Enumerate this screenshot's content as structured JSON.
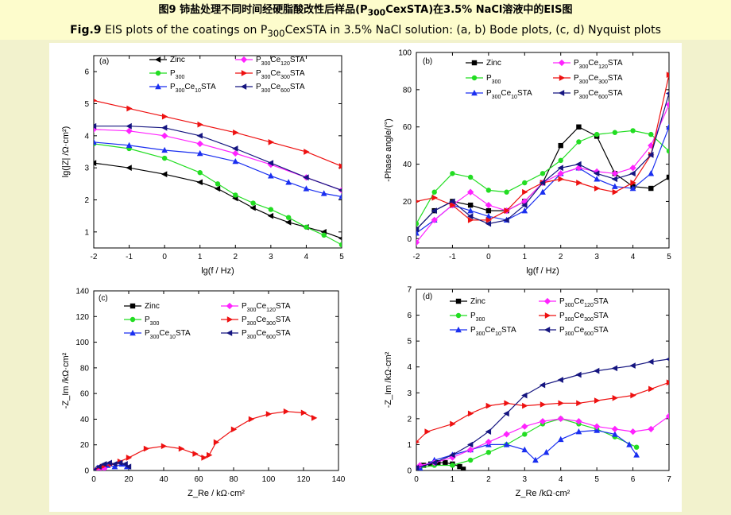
{
  "header": {
    "title_cn_pre": "图9",
    "title_cn": "铈盐处理不同时间经硬脂酸改性后样品(P",
    "title_cn_sub": "300",
    "title_cn_post": "CexSTA)在3.5% NaCl溶液中的EIS图",
    "title_en_bold": "Fig.9",
    "title_en_pre": " EIS plots of the coatings on P",
    "title_en_sub": "300",
    "title_en_post": "CexSTA in 3.5% NaCl solution: (a, b) Bode plots, (c, d) Nyquist plots"
  },
  "colors": {
    "Zinc": "#000000",
    "P300": "#22dd22",
    "P300Ce10STA": "#1a2ff0",
    "P300Ce120STA": "#ff22ff",
    "P300Ce300STA": "#ee1111",
    "P300Ce600STA": "#151580"
  },
  "chart_data": [
    {
      "panel": "(a)",
      "type": "line",
      "xlabel": "lg(f / Hz)",
      "ylabel": "lg(|Z| /Ω·cm²)",
      "xlim": [
        -2,
        5
      ],
      "ylim": [
        0.5,
        6.5
      ],
      "xticks": [
        "-2",
        "-1",
        "0",
        "1",
        "2",
        "3",
        "4",
        "5"
      ],
      "yticks": [
        "1",
        "2",
        "3",
        "4",
        "5",
        "6"
      ],
      "legend": [
        "Zinc",
        "P300",
        "P300Ce10STA",
        "P300Ce120STA",
        "P300Ce300STA",
        "P300Ce600STA"
      ],
      "series": [
        {
          "name": "Zinc",
          "marker": "triangle-left",
          "x": [
            -2,
            -1,
            0,
            1,
            1.5,
            2,
            2.5,
            3,
            3.5,
            4,
            4.5,
            5
          ],
          "y": [
            3.15,
            3.0,
            2.8,
            2.55,
            2.35,
            2.05,
            1.75,
            1.5,
            1.3,
            1.15,
            1.0,
            0.8
          ]
        },
        {
          "name": "P300",
          "marker": "circle",
          "x": [
            -2,
            -1,
            0,
            1,
            1.5,
            2,
            2.5,
            3,
            3.5,
            4,
            4.5,
            5
          ],
          "y": [
            3.75,
            3.6,
            3.3,
            2.85,
            2.5,
            2.15,
            1.9,
            1.7,
            1.45,
            1.15,
            0.9,
            0.6
          ]
        },
        {
          "name": "P300Ce10STA",
          "marker": "triangle-up",
          "x": [
            -2,
            -1,
            0,
            1,
            2,
            3,
            3.5,
            4,
            4.5,
            5
          ],
          "y": [
            3.8,
            3.7,
            3.55,
            3.45,
            3.2,
            2.75,
            2.55,
            2.35,
            2.2,
            2.1
          ]
        },
        {
          "name": "P300Ce120STA",
          "marker": "diamond",
          "x": [
            -2,
            -1,
            0,
            1,
            2,
            3,
            4,
            5
          ],
          "y": [
            4.2,
            4.15,
            4.0,
            3.75,
            3.45,
            3.1,
            2.7,
            2.3
          ]
        },
        {
          "name": "P300Ce300STA",
          "marker": "triangle-right",
          "x": [
            -2,
            -1,
            0,
            1,
            2,
            3,
            4,
            5
          ],
          "y": [
            5.1,
            4.85,
            4.6,
            4.35,
            4.1,
            3.8,
            3.5,
            3.05
          ]
        },
        {
          "name": "P300Ce600STA",
          "marker": "triangle-left",
          "x": [
            -2,
            -1,
            0,
            1,
            2,
            3,
            4,
            5
          ],
          "y": [
            4.3,
            4.3,
            4.25,
            4.0,
            3.6,
            3.15,
            2.7,
            2.3
          ]
        }
      ]
    },
    {
      "panel": "(b)",
      "type": "line",
      "xlabel": "lg(f / Hz)",
      "ylabel": "-Phase angle/(°)",
      "xlim": [
        -2,
        5
      ],
      "ylim": [
        -5,
        100
      ],
      "xticks": [
        "-2",
        "-1",
        "0",
        "1",
        "2",
        "3",
        "4",
        "5"
      ],
      "yticks": [
        "0",
        "20",
        "40",
        "60",
        "80",
        "100"
      ],
      "legend": [
        "Zinc",
        "P300",
        "P300Ce10STA",
        "P300Ce120STA",
        "P300Ce300STA",
        "P300Ce600STA"
      ],
      "series": [
        {
          "name": "Zinc",
          "marker": "square",
          "x": [
            -2,
            -1.5,
            -1,
            -0.5,
            0,
            0.5,
            1,
            1.5,
            2,
            2.5,
            3,
            3.5,
            4,
            4.5,
            5
          ],
          "y": [
            5,
            15,
            20,
            18,
            15,
            15,
            20,
            30,
            50,
            60,
            55,
            35,
            28,
            27,
            33
          ]
        },
        {
          "name": "P300",
          "marker": "circle",
          "x": [
            -2,
            -1.5,
            -1,
            -0.5,
            0,
            0.5,
            1,
            1.5,
            2,
            2.5,
            3,
            3.5,
            4,
            4.5,
            5
          ],
          "y": [
            8,
            25,
            35,
            33,
            26,
            25,
            30,
            35,
            42,
            52,
            56,
            57,
            58,
            56,
            47
          ]
        },
        {
          "name": "P300Ce10STA",
          "marker": "triangle-up",
          "x": [
            -2,
            -1.5,
            -1,
            -0.5,
            0,
            0.5,
            1,
            1.5,
            2,
            2.5,
            3,
            3.5,
            4,
            4.5,
            5
          ],
          "y": [
            3,
            10,
            18,
            15,
            12,
            10,
            15,
            25,
            35,
            38,
            32,
            28,
            27,
            35,
            60
          ]
        },
        {
          "name": "P300Ce120STA",
          "marker": "diamond",
          "x": [
            -2,
            -1.5,
            -1,
            -0.5,
            0,
            0.5,
            1,
            1.5,
            2,
            2.5,
            3,
            3.5,
            4,
            4.5,
            5
          ],
          "y": [
            -2,
            10,
            18,
            25,
            18,
            15,
            20,
            30,
            35,
            38,
            36,
            35,
            38,
            50,
            72
          ]
        },
        {
          "name": "P300Ce300STA",
          "marker": "triangle-right",
          "x": [
            -2,
            -1.5,
            -1,
            -0.5,
            0,
            0.5,
            1,
            1.5,
            2,
            2.5,
            3,
            3.5,
            4,
            4.5,
            5
          ],
          "y": [
            20,
            22,
            18,
            10,
            10,
            15,
            25,
            30,
            32,
            30,
            27,
            25,
            30,
            45,
            88
          ]
        },
        {
          "name": "P300Ce600STA",
          "marker": "triangle-left",
          "x": [
            -2,
            -1.5,
            -1,
            -0.5,
            0,
            0.5,
            1,
            1.5,
            2,
            2.5,
            3,
            3.5,
            4,
            4.5,
            5
          ],
          "y": [
            5,
            15,
            20,
            12,
            8,
            10,
            18,
            30,
            38,
            40,
            35,
            32,
            35,
            45,
            78
          ]
        }
      ]
    },
    {
      "panel": "(c)",
      "type": "line",
      "xlabel": "Z_Re / kΩ·cm²",
      "ylabel": "-Z_Im /kΩ·cm²",
      "xlim": [
        0,
        140
      ],
      "ylim": [
        0,
        140
      ],
      "xticks": [
        "0",
        "20",
        "40",
        "60",
        "80",
        "100",
        "120",
        "140"
      ],
      "yticks": [
        "0",
        "20",
        "40",
        "60",
        "80",
        "100",
        "120",
        "140"
      ],
      "legend": [
        "Zinc",
        "P300",
        "P300Ce10STA",
        "P300Ce120STA",
        "P300Ce300STA",
        "P300Ce600STA"
      ],
      "series": [
        {
          "name": "Zinc",
          "marker": "square",
          "x": [
            0,
            0.5,
            1,
            1.5
          ],
          "y": [
            0,
            0.2,
            0.3,
            0.2
          ]
        },
        {
          "name": "P300",
          "marker": "circle",
          "x": [
            0.5,
            2,
            4,
            5.5
          ],
          "y": [
            0.2,
            1.5,
            2,
            1
          ]
        },
        {
          "name": "P300Ce10STA",
          "marker": "triangle-up",
          "x": [
            0,
            2,
            5,
            8,
            12,
            16,
            19
          ],
          "y": [
            0,
            2,
            3.5,
            4,
            3,
            5,
            3
          ]
        },
        {
          "name": "P300Ce120STA",
          "marker": "diamond",
          "x": [
            0,
            2,
            4,
            6
          ],
          "y": [
            0,
            1,
            2,
            1.5
          ]
        },
        {
          "name": "P300Ce300STA",
          "marker": "triangle-right",
          "x": [
            0,
            5,
            10,
            15,
            20,
            30,
            40,
            50,
            58,
            63,
            66,
            70,
            80,
            90,
            100,
            110,
            120,
            126
          ],
          "y": [
            0,
            3,
            5,
            7,
            10,
            17,
            19,
            17,
            13,
            10,
            12,
            22,
            32,
            40,
            44,
            46,
            45,
            41
          ]
        },
        {
          "name": "P300Ce600STA",
          "marker": "triangle-left",
          "x": [
            0,
            3,
            6,
            9,
            12,
            15,
            18,
            20
          ],
          "y": [
            0,
            3,
            5,
            6,
            5,
            6,
            5,
            3
          ]
        }
      ]
    },
    {
      "panel": "(d)",
      "type": "line",
      "xlabel": "Z_Re /kΩ·cm²",
      "ylabel": "-Z_Im /kΩ·cm²",
      "xlim": [
        0,
        7
      ],
      "ylim": [
        0,
        7
      ],
      "xticks": [
        "0",
        "1",
        "2",
        "3",
        "4",
        "5",
        "6",
        "7"
      ],
      "yticks": [
        "0",
        "1",
        "2",
        "3",
        "4",
        "5",
        "6",
        "7"
      ],
      "legend": [
        "Zinc",
        "P300",
        "P300Ce10STA",
        "P300Ce120STA",
        "P300Ce300STA",
        "P300Ce600STA"
      ],
      "series": [
        {
          "name": "Zinc",
          "marker": "square",
          "x": [
            0,
            0.2,
            0.4,
            0.6,
            0.8,
            1.0,
            1.2,
            1.3
          ],
          "y": [
            0.1,
            0.2,
            0.25,
            0.3,
            0.3,
            0.25,
            0.15,
            0.05
          ]
        },
        {
          "name": "P300",
          "marker": "circle",
          "x": [
            0.1,
            0.5,
            1,
            1.5,
            2,
            2.5,
            3,
            3.5,
            4,
            4.5,
            5,
            5.5,
            6.1
          ],
          "y": [
            0.1,
            0.2,
            0.2,
            0.4,
            0.7,
            1.0,
            1.4,
            1.8,
            2.0,
            1.8,
            1.6,
            1.3,
            0.9
          ]
        },
        {
          "name": "P300Ce10STA",
          "marker": "triangle-up",
          "x": [
            0.1,
            0.5,
            1,
            1.5,
            2,
            2.5,
            3,
            3.3,
            3.6,
            4,
            4.5,
            5,
            5.5,
            5.9,
            6.1
          ],
          "y": [
            0.1,
            0.4,
            0.6,
            0.8,
            1.0,
            1.0,
            0.8,
            0.4,
            0.7,
            1.2,
            1.5,
            1.55,
            1.4,
            1.0,
            0.6
          ]
        },
        {
          "name": "P300Ce120STA",
          "marker": "diamond",
          "x": [
            0.1,
            0.5,
            1,
            1.5,
            2,
            2.5,
            3,
            3.5,
            4,
            4.5,
            5,
            5.5,
            6,
            6.5,
            7
          ],
          "y": [
            0.2,
            0.3,
            0.5,
            0.8,
            1.1,
            1.4,
            1.7,
            1.9,
            2.0,
            1.9,
            1.7,
            1.6,
            1.5,
            1.6,
            2.1
          ]
        },
        {
          "name": "P300Ce300STA",
          "marker": "triangle-right",
          "x": [
            0,
            0.3,
            1,
            1.5,
            2,
            2.5,
            3,
            3.5,
            4,
            4.5,
            5,
            5.5,
            6,
            6.5,
            7
          ],
          "y": [
            1.1,
            1.5,
            1.8,
            2.2,
            2.5,
            2.6,
            2.5,
            2.55,
            2.6,
            2.6,
            2.7,
            2.8,
            2.9,
            3.15,
            3.4
          ]
        },
        {
          "name": "P300Ce600STA",
          "marker": "triangle-left",
          "x": [
            0,
            0.5,
            1,
            1.5,
            2,
            2.5,
            3,
            3.5,
            4,
            4.5,
            5,
            5.5,
            6,
            6.5,
            7
          ],
          "y": [
            0.1,
            0.3,
            0.6,
            1.0,
            1.5,
            2.2,
            2.9,
            3.3,
            3.5,
            3.7,
            3.85,
            3.95,
            4.05,
            4.2,
            4.3
          ]
        }
      ]
    }
  ]
}
